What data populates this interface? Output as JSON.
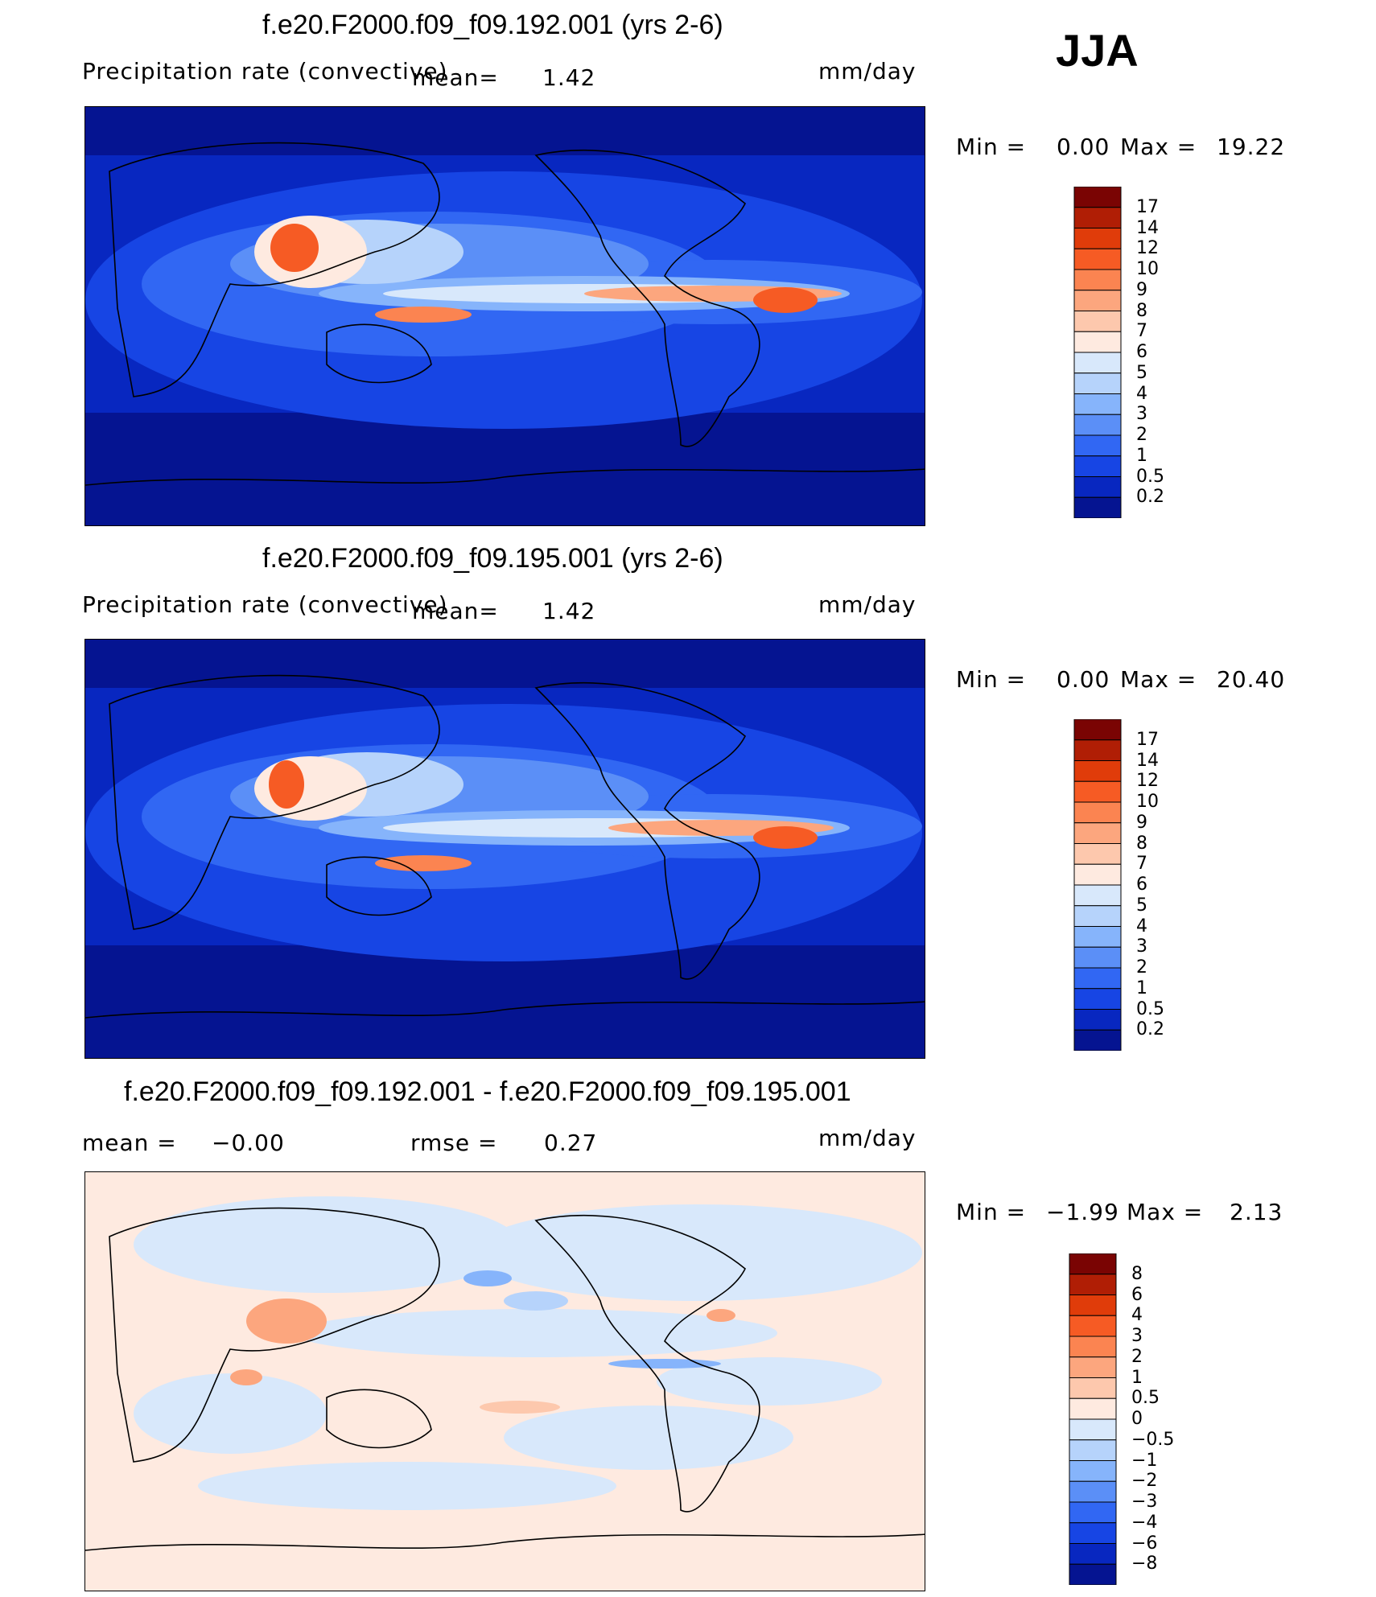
{
  "season": "JJA",
  "units": "mm/day",
  "panels": [
    {
      "title": "f.e20.F2000.f09_f09.192.001 (yrs 2-6)",
      "variable": "Precipitation rate (convective)",
      "mean_label": "mean=",
      "mean_value": "1.42",
      "min_label": "Min =",
      "min_value": "0.00",
      "max_label": "Max =",
      "max_value": "19.22",
      "colorbar_levels": [
        "17",
        "14",
        "12",
        "10",
        "9",
        "8",
        "7",
        "6",
        "5",
        "4",
        "3",
        "2",
        "1",
        "0.5",
        "0.2"
      ],
      "colorbar_colors": [
        "#7a0403",
        "#b01e05",
        "#e03c0a",
        "#f65b24",
        "#fb8451",
        "#fca67e",
        "#fdc8ad",
        "#feeae0",
        "#d8e8fb",
        "#b6d3fb",
        "#86b4fb",
        "#5b8ff7",
        "#3167f3",
        "#1745e4",
        "#0827c0",
        "#051491"
      ]
    },
    {
      "title": "f.e20.F2000.f09_f09.195.001 (yrs 2-6)",
      "variable": "Precipitation rate (convective)",
      "mean_label": "mean=",
      "mean_value": "1.42",
      "min_label": "Min =",
      "min_value": "0.00",
      "max_label": "Max =",
      "max_value": "20.40",
      "colorbar_levels": [
        "17",
        "14",
        "12",
        "10",
        "9",
        "8",
        "7",
        "6",
        "5",
        "4",
        "3",
        "2",
        "1",
        "0.5",
        "0.2"
      ],
      "colorbar_colors": [
        "#7a0403",
        "#b01e05",
        "#e03c0a",
        "#f65b24",
        "#fb8451",
        "#fca67e",
        "#fdc8ad",
        "#feeae0",
        "#d8e8fb",
        "#b6d3fb",
        "#86b4fb",
        "#5b8ff7",
        "#3167f3",
        "#1745e4",
        "#0827c0",
        "#051491"
      ]
    },
    {
      "title": "f.e20.F2000.f09_f09.192.001 - f.e20.F2000.f09_f09.195.001",
      "mean_label": "mean =",
      "mean_value": "−0.00",
      "rmse_label": "rmse =",
      "rmse_value": "0.27",
      "min_label": "Min =",
      "min_value": "−1.99",
      "max_label": "Max =",
      "max_value": "2.13",
      "colorbar_levels": [
        "8",
        "6",
        "4",
        "3",
        "2",
        "1",
        "0.5",
        "0",
        "−0.5",
        "−1",
        "−2",
        "−3",
        "−4",
        "−6",
        "−8"
      ],
      "colorbar_colors": [
        "#7a0403",
        "#b01e05",
        "#e03c0a",
        "#f65b24",
        "#fb8451",
        "#fca67e",
        "#fdc8ad",
        "#feeae0",
        "#d8e8fb",
        "#b6d3fb",
        "#86b4fb",
        "#5b8ff7",
        "#3167f3",
        "#1745e4",
        "#0827c0",
        "#051491"
      ]
    }
  ],
  "chart_data": [
    {
      "type": "heatmap",
      "title": "f.e20.F2000.f09_f09.192.001 (yrs 2-6)",
      "subtitle": "Precipitation rate (convective)",
      "units": "mm/day",
      "mean": 1.42,
      "min": 0.0,
      "max": 19.22,
      "levels": [
        0.2,
        0.5,
        1,
        2,
        3,
        4,
        5,
        6,
        7,
        8,
        9,
        10,
        12,
        14,
        17
      ]
    },
    {
      "type": "heatmap",
      "title": "f.e20.F2000.f09_f09.195.001 (yrs 2-6)",
      "subtitle": "Precipitation rate (convective)",
      "units": "mm/day",
      "mean": 1.42,
      "min": 0.0,
      "max": 20.4,
      "levels": [
        0.2,
        0.5,
        1,
        2,
        3,
        4,
        5,
        6,
        7,
        8,
        9,
        10,
        12,
        14,
        17
      ]
    },
    {
      "type": "heatmap",
      "title": "f.e20.F2000.f09_f09.192.001 - f.e20.F2000.f09_f09.195.001",
      "units": "mm/day",
      "mean": -0.0,
      "rmse": 0.27,
      "min": -1.99,
      "max": 2.13,
      "levels": [
        -8,
        -6,
        -4,
        -3,
        -2,
        -1,
        -0.5,
        0,
        0.5,
        1,
        2,
        3,
        4,
        6,
        8
      ]
    }
  ]
}
